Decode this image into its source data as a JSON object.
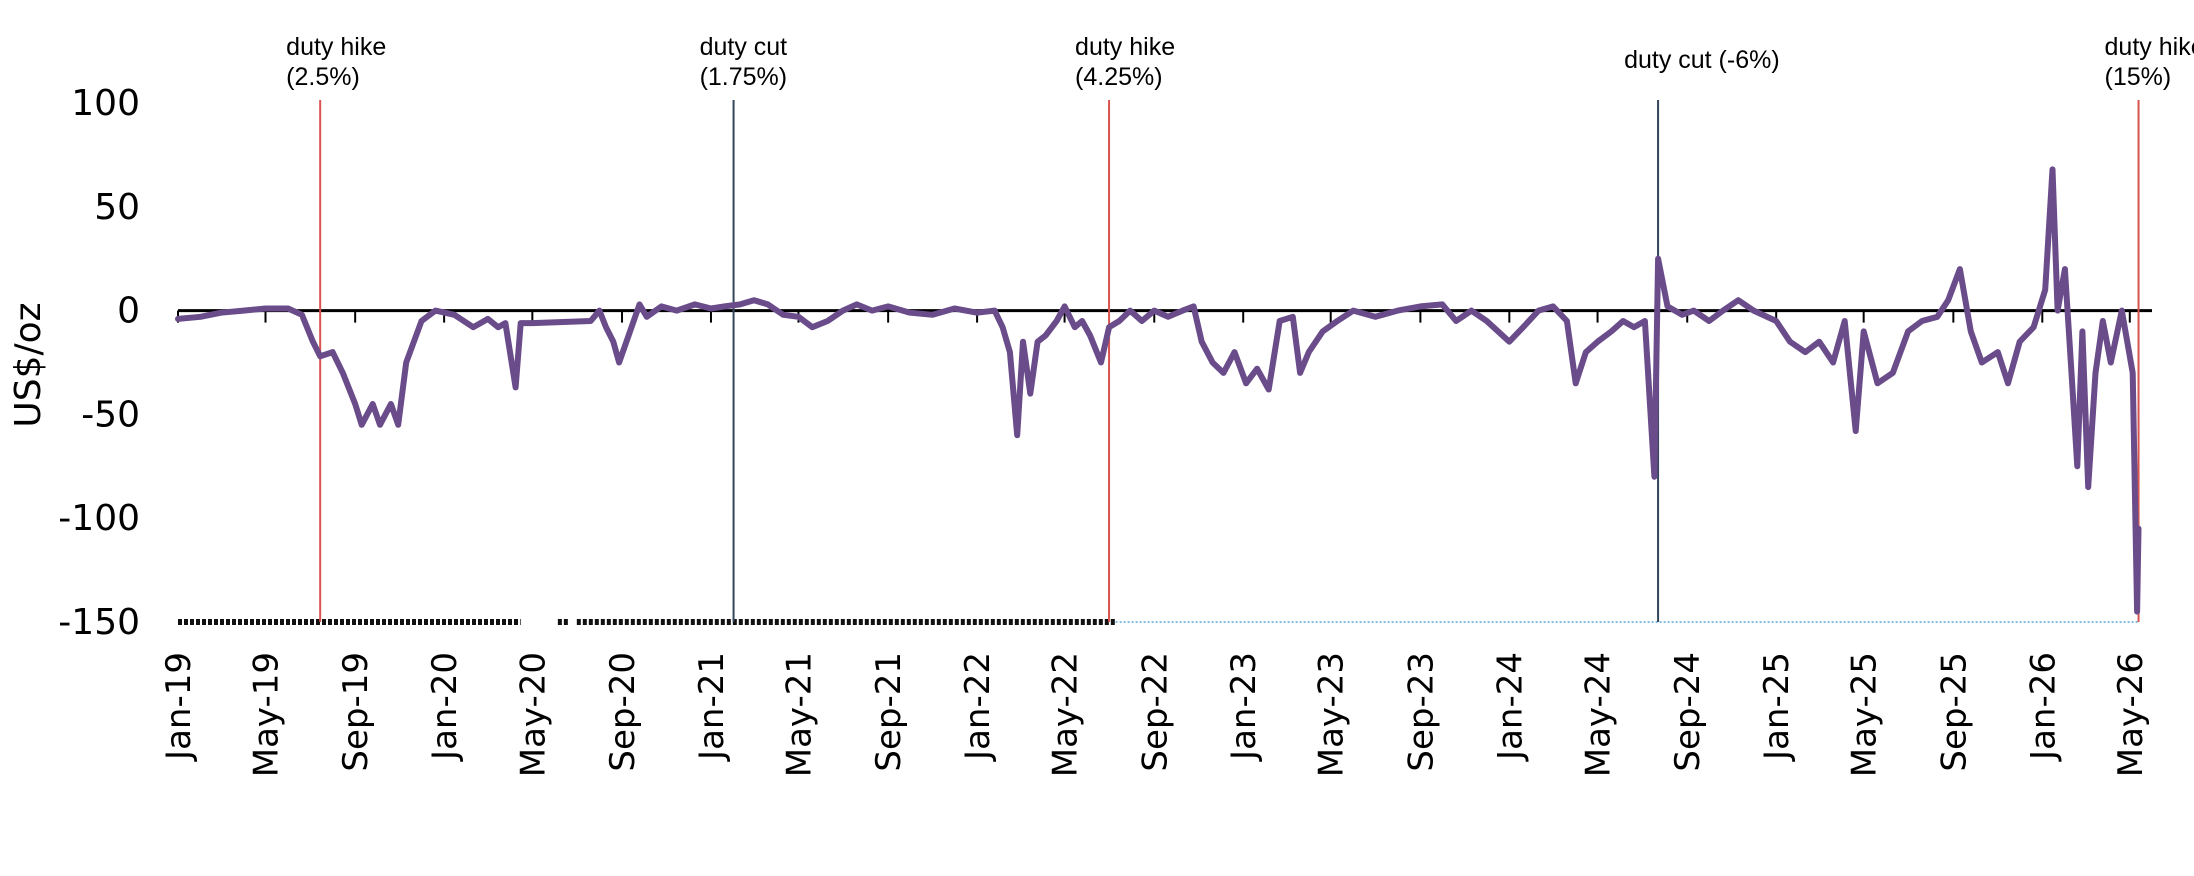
{
  "chart_data": {
    "type": "line",
    "title": "",
    "xlabel": "",
    "ylabel": "US$/oz",
    "ylim": [
      -150,
      100
    ],
    "yticks": [
      {
        "value": 100,
        "label": "100"
      },
      {
        "value": 50,
        "label": "50"
      },
      {
        "value": 0,
        "label": "0"
      },
      {
        "value": -50,
        "label": "-50"
      },
      {
        "value": -100,
        "label": "-100"
      },
      {
        "value": -150,
        "label": "-150"
      }
    ],
    "xlim": [
      "2019-01-01",
      "2026-05-15"
    ],
    "xticks": [
      {
        "date": "2019-01-01",
        "label": "Jan-19"
      },
      {
        "date": "2019-05-01",
        "label": "May-19"
      },
      {
        "date": "2019-09-01",
        "label": "Sep-19"
      },
      {
        "date": "2020-01-01",
        "label": "Jan-20"
      },
      {
        "date": "2020-05-01",
        "label": "May-20"
      },
      {
        "date": "2020-09-01",
        "label": "Sep-20"
      },
      {
        "date": "2021-01-01",
        "label": "Jan-21"
      },
      {
        "date": "2021-05-01",
        "label": "May-21"
      },
      {
        "date": "2021-09-01",
        "label": "Sep-21"
      },
      {
        "date": "2022-01-01",
        "label": "Jan-22"
      },
      {
        "date": "2022-05-01",
        "label": "May-22"
      },
      {
        "date": "2022-09-01",
        "label": "Sep-22"
      },
      {
        "date": "2023-01-01",
        "label": "Jan-23"
      },
      {
        "date": "2023-05-01",
        "label": "May-23"
      },
      {
        "date": "2023-09-01",
        "label": "Sep-23"
      },
      {
        "date": "2024-01-01",
        "label": "Jan-24"
      },
      {
        "date": "2024-05-01",
        "label": "May-24"
      },
      {
        "date": "2024-09-01",
        "label": "Sep-24"
      },
      {
        "date": "2025-01-01",
        "label": "Jan-25"
      },
      {
        "date": "2025-05-01",
        "label": "May-25"
      },
      {
        "date": "2025-09-01",
        "label": "Sep-25"
      },
      {
        "date": "2026-01-01",
        "label": "Jan-26"
      },
      {
        "date": "2026-05-01",
        "label": "May-26"
      }
    ],
    "grid": false,
    "series": [
      {
        "color": "#6a4c8a",
        "points": [
          [
            "2019-01-01",
            -4
          ],
          [
            "2019-02-01",
            -3
          ],
          [
            "2019-03-01",
            -1
          ],
          [
            "2019-04-01",
            0
          ],
          [
            "2019-05-01",
            1
          ],
          [
            "2019-06-01",
            1
          ],
          [
            "2019-06-20",
            -2
          ],
          [
            "2019-07-05",
            -15
          ],
          [
            "2019-07-15",
            -22
          ],
          [
            "2019-08-01",
            -20
          ],
          [
            "2019-08-15",
            -30
          ],
          [
            "2019-09-01",
            -45
          ],
          [
            "2019-09-10",
            -55
          ],
          [
            "2019-09-25",
            -45
          ],
          [
            "2019-10-05",
            -55
          ],
          [
            "2019-10-20",
            -45
          ],
          [
            "2019-10-30",
            -55
          ],
          [
            "2019-11-10",
            -25
          ],
          [
            "2019-12-01",
            -5
          ],
          [
            "2019-12-20",
            0
          ],
          [
            "2020-01-15",
            -2
          ],
          [
            "2020-02-10",
            -8
          ],
          [
            "2020-03-01",
            -4
          ],
          [
            "2020-03-15",
            -8
          ],
          [
            "2020-03-25",
            -6
          ],
          [
            "2020-04-08",
            -37
          ],
          [
            "2020-04-15",
            -6
          ],
          [
            "2020-05-01",
            -6
          ],
          [
            "2020-07-20",
            -5
          ],
          [
            "2020-08-01",
            0
          ],
          [
            "2020-08-10",
            -8
          ],
          [
            "2020-08-20",
            -15
          ],
          [
            "2020-08-28",
            -25
          ],
          [
            "2020-09-10",
            -12
          ],
          [
            "2020-09-25",
            3
          ],
          [
            "2020-10-05",
            -3
          ],
          [
            "2020-10-25",
            2
          ],
          [
            "2020-11-15",
            0
          ],
          [
            "2020-12-10",
            3
          ],
          [
            "2021-01-01",
            1
          ],
          [
            "2021-01-20",
            2
          ],
          [
            "2021-02-10",
            3
          ],
          [
            "2021-03-01",
            5
          ],
          [
            "2021-03-20",
            3
          ],
          [
            "2021-04-10",
            -2
          ],
          [
            "2021-05-01",
            -3
          ],
          [
            "2021-05-20",
            -8
          ],
          [
            "2021-06-10",
            -5
          ],
          [
            "2021-07-01",
            0
          ],
          [
            "2021-07-20",
            3
          ],
          [
            "2021-08-10",
            0
          ],
          [
            "2021-09-01",
            2
          ],
          [
            "2021-10-01",
            -1
          ],
          [
            "2021-11-01",
            -2
          ],
          [
            "2021-12-01",
            1
          ],
          [
            "2022-01-01",
            -1
          ],
          [
            "2022-01-25",
            0
          ],
          [
            "2022-02-05",
            -8
          ],
          [
            "2022-02-15",
            -20
          ],
          [
            "2022-02-25",
            -60
          ],
          [
            "2022-03-05",
            -15
          ],
          [
            "2022-03-15",
            -40
          ],
          [
            "2022-03-25",
            -15
          ],
          [
            "2022-04-05",
            -12
          ],
          [
            "2022-04-20",
            -5
          ],
          [
            "2022-05-01",
            2
          ],
          [
            "2022-05-15",
            -8
          ],
          [
            "2022-05-25",
            -5
          ],
          [
            "2022-06-05",
            -12
          ],
          [
            "2022-06-20",
            -25
          ],
          [
            "2022-07-01",
            -8
          ],
          [
            "2022-07-15",
            -5
          ],
          [
            "2022-07-30",
            0
          ],
          [
            "2022-08-15",
            -5
          ],
          [
            "2022-09-01",
            0
          ],
          [
            "2022-09-20",
            -3
          ],
          [
            "2022-10-10",
            0
          ],
          [
            "2022-10-25",
            2
          ],
          [
            "2022-11-05",
            -15
          ],
          [
            "2022-11-20",
            -25
          ],
          [
            "2022-12-05",
            -30
          ],
          [
            "2022-12-20",
            -20
          ],
          [
            "2023-01-05",
            -35
          ],
          [
            "2023-01-20",
            -28
          ],
          [
            "2023-02-05",
            -38
          ],
          [
            "2023-02-20",
            -5
          ],
          [
            "2023-03-10",
            -3
          ],
          [
            "2023-03-20",
            -30
          ],
          [
            "2023-04-01",
            -20
          ],
          [
            "2023-04-20",
            -10
          ],
          [
            "2023-05-10",
            -5
          ],
          [
            "2023-06-01",
            0
          ],
          [
            "2023-07-01",
            -3
          ],
          [
            "2023-08-01",
            0
          ],
          [
            "2023-09-01",
            2
          ],
          [
            "2023-10-01",
            3
          ],
          [
            "2023-10-20",
            -5
          ],
          [
            "2023-11-10",
            0
          ],
          [
            "2023-12-01",
            -5
          ],
          [
            "2024-01-01",
            -15
          ],
          [
            "2024-01-20",
            -8
          ],
          [
            "2024-02-10",
            0
          ],
          [
            "2024-03-01",
            2
          ],
          [
            "2024-03-20",
            -5
          ],
          [
            "2024-04-01",
            -35
          ],
          [
            "2024-04-15",
            -20
          ],
          [
            "2024-05-01",
            -15
          ],
          [
            "2024-05-20",
            -10
          ],
          [
            "2024-06-05",
            -5
          ],
          [
            "2024-06-20",
            -8
          ],
          [
            "2024-07-05",
            -5
          ],
          [
            "2024-07-18",
            -80
          ],
          [
            "2024-07-23",
            25
          ],
          [
            "2024-08-05",
            2
          ],
          [
            "2024-08-25",
            -2
          ],
          [
            "2024-09-10",
            0
          ],
          [
            "2024-10-01",
            -5
          ],
          [
            "2024-10-20",
            0
          ],
          [
            "2024-11-10",
            5
          ],
          [
            "2024-12-01",
            0
          ],
          [
            "2025-01-01",
            -5
          ],
          [
            "2025-01-20",
            -15
          ],
          [
            "2025-02-10",
            -20
          ],
          [
            "2025-03-01",
            -15
          ],
          [
            "2025-03-20",
            -25
          ],
          [
            "2025-04-05",
            -5
          ],
          [
            "2025-04-20",
            -58
          ],
          [
            "2025-05-01",
            -10
          ],
          [
            "2025-05-20",
            -35
          ],
          [
            "2025-06-10",
            -30
          ],
          [
            "2025-07-01",
            -10
          ],
          [
            "2025-07-20",
            -5
          ],
          [
            "2025-08-10",
            -3
          ],
          [
            "2025-08-25",
            5
          ],
          [
            "2025-09-10",
            20
          ],
          [
            "2025-09-25",
            -10
          ],
          [
            "2025-10-10",
            -25
          ],
          [
            "2025-11-01",
            -20
          ],
          [
            "2025-11-15",
            -35
          ],
          [
            "2025-12-01",
            -15
          ],
          [
            "2025-12-20",
            -8
          ],
          [
            "2026-01-05",
            10
          ],
          [
            "2026-01-15",
            68
          ],
          [
            "2026-01-22",
            0
          ],
          [
            "2026-02-01",
            20
          ],
          [
            "2026-02-10",
            -30
          ],
          [
            "2026-02-18",
            -75
          ],
          [
            "2026-02-25",
            -10
          ],
          [
            "2026-03-05",
            -85
          ],
          [
            "2026-03-15",
            -30
          ],
          [
            "2026-03-25",
            -5
          ],
          [
            "2026-04-05",
            -25
          ],
          [
            "2026-04-20",
            0
          ],
          [
            "2026-05-05",
            -30
          ],
          [
            "2026-05-11",
            -145
          ],
          [
            "2026-05-13",
            -105
          ]
        ]
      }
    ],
    "annotations": [
      {
        "date": "2019-07-15",
        "lines": [
          "duty hike",
          "(2.5%)"
        ],
        "color": "#d9534f"
      },
      {
        "date": "2021-02-01",
        "lines": [
          "duty cut",
          "(1.75%)"
        ],
        "color": "#33465c"
      },
      {
        "date": "2022-07-01",
        "lines": [
          "duty hike",
          "(4.25%)"
        ],
        "color": "#d9534f"
      },
      {
        "date": "2024-07-23",
        "lines": [
          "duty cut (-6%)"
        ],
        "color": "#33465c"
      },
      {
        "date": "2026-05-13",
        "lines": [
          "duty hike",
          "(15%)"
        ],
        "color": "#d9534f"
      }
    ],
    "baseline_segments": [
      {
        "from": "2019-01-01",
        "to": "2020-04-15",
        "style": "dots",
        "color": "#111111"
      },
      {
        "from": "2020-06-05",
        "to": "2020-06-20",
        "style": "dots",
        "color": "#111111"
      },
      {
        "from": "2020-07-01",
        "to": "2022-07-10",
        "style": "dots",
        "color": "#111111"
      },
      {
        "from": "2022-07-10",
        "to": "2026-05-13",
        "style": "dotted-line",
        "color": "#7fc1e6"
      }
    ],
    "line_color": "#6a4c8a"
  }
}
